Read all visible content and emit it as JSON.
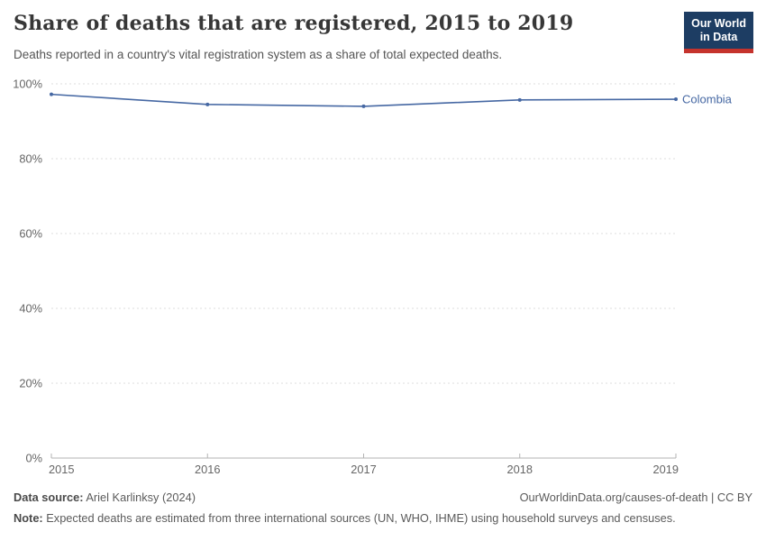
{
  "header": {
    "logo": {
      "line1": "Our World",
      "line2": "in Data",
      "bg_color": "#1d3d63",
      "stripe_color": "#c5332d"
    }
  },
  "chart_data": {
    "type": "line",
    "title": "Share of deaths that are registered, 2015 to 2019",
    "subtitle": "Deaths reported in a country's vital registration system as a share of total expected deaths.",
    "x": [
      2015,
      2016,
      2017,
      2018,
      2019
    ],
    "xtick_labels": [
      "2015",
      "2016",
      "2017",
      "2018",
      "2019"
    ],
    "series": [
      {
        "name": "Colombia",
        "values": [
          97.2,
          94.5,
          94.0,
          95.7,
          95.9
        ],
        "color": "#4668a3"
      }
    ],
    "xlabel": "",
    "ylabel": "",
    "ylim": [
      0,
      100
    ],
    "yticks": [
      0,
      20,
      40,
      60,
      80,
      100
    ],
    "ytick_suffix": "%",
    "grid": "horizontal-dashed",
    "legend_position": "end-of-line"
  },
  "footer": {
    "datasource_label": "Data source:",
    "datasource_value": " Ariel Karlinksy (2024)",
    "link": "OurWorldinData.org/causes-of-death | CC BY",
    "note_label": "Note:",
    "note_value": " Expected deaths are estimated from three international sources (UN, WHO, IHME) using household surveys and censuses."
  },
  "colors": {
    "line": "#4668a3",
    "entity_label": "#4668a3",
    "grid": "#dddddd",
    "axis": "#b3b3b3",
    "tick_text": "#666666",
    "title": "#373737",
    "subtitle": "#555555"
  }
}
